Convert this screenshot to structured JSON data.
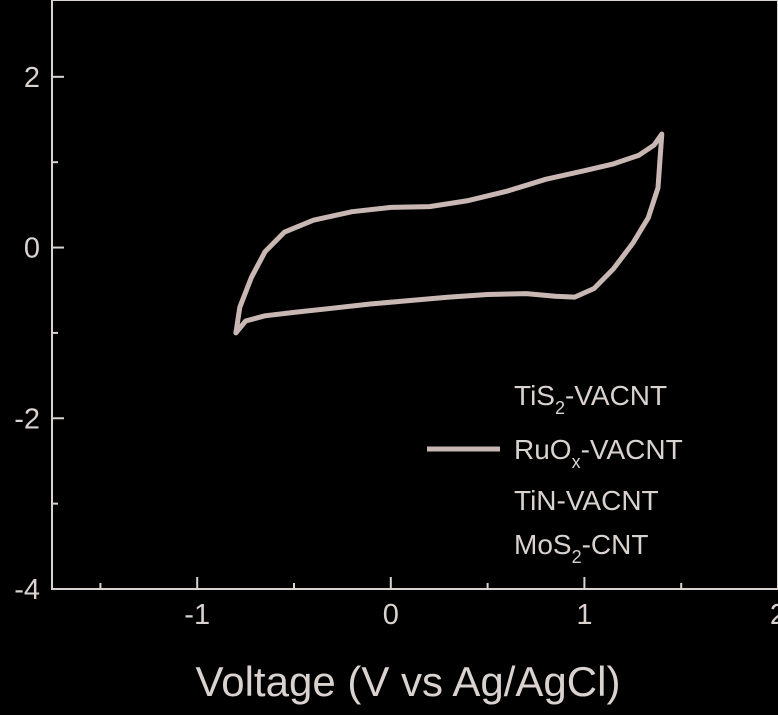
{
  "chart_data": {
    "type": "line",
    "title": "",
    "xlabel": "Voltage (V vs Ag/AgCl)",
    "ylabel": "",
    "xlim": [
      -1.75,
      2.0
    ],
    "ylim": [
      -4.0,
      2.9
    ],
    "x_ticks": [
      "-1",
      "0",
      "1",
      "2"
    ],
    "y_ticks": [
      "2",
      "0",
      "-2",
      "-4"
    ],
    "grid": false,
    "legend_position": "bottom-right",
    "colors": {
      "background": "#000000",
      "axis": "#d9d2ce",
      "curve": "#c8b7b2"
    },
    "legend": [
      {
        "base": "TiS",
        "sub": "2",
        "rest": "-VACNT",
        "line": false
      },
      {
        "base": "RuO",
        "sub": "x",
        "rest": "-VACNT",
        "line": true
      },
      {
        "base": "TiN-VACNT",
        "sub": "",
        "rest": "",
        "line": false
      },
      {
        "base": "MoS",
        "sub": "2",
        "rest": "-CNT",
        "line": false
      }
    ],
    "series": [
      {
        "legend_index": 1,
        "x": [
          -0.8,
          -0.78,
          -0.72,
          -0.65,
          -0.55,
          -0.4,
          -0.2,
          0.0,
          0.2,
          0.4,
          0.6,
          0.8,
          1.0,
          1.15,
          1.28,
          1.36,
          1.4,
          1.38,
          1.33,
          1.25,
          1.15,
          1.05,
          0.95,
          0.85,
          0.7,
          0.5,
          0.3,
          0.1,
          -0.1,
          -0.3,
          -0.5,
          -0.65,
          -0.75,
          -0.8
        ],
        "y": [
          -1.0,
          -0.7,
          -0.35,
          -0.05,
          0.18,
          0.32,
          0.42,
          0.47,
          0.48,
          0.55,
          0.66,
          0.8,
          0.9,
          0.98,
          1.08,
          1.2,
          1.33,
          0.7,
          0.35,
          0.05,
          -0.25,
          -0.48,
          -0.58,
          -0.57,
          -0.54,
          -0.55,
          -0.58,
          -0.62,
          -0.66,
          -0.71,
          -0.76,
          -0.8,
          -0.86,
          -1.0
        ]
      }
    ]
  }
}
